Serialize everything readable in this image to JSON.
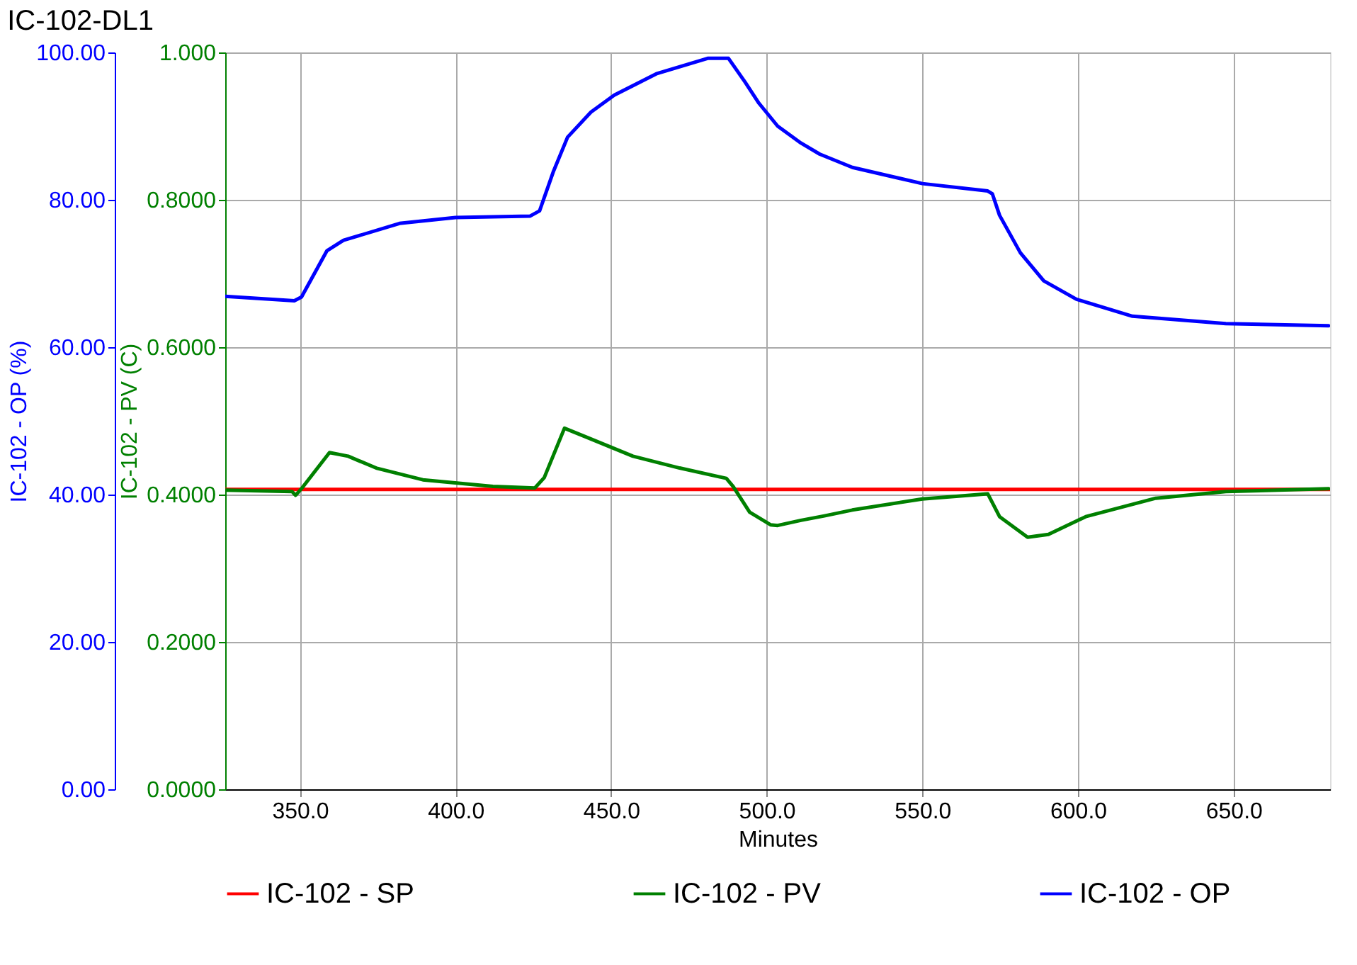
{
  "chart_data": {
    "type": "line",
    "title": "IC-102-DL1",
    "xlabel": "Minutes",
    "ylabel": "IC-102 - PV (C)",
    "y2label": "IC-102 - OP (%)",
    "xlim": [
      326,
      681
    ],
    "xticks": [
      {
        "value": 350,
        "label": "350.0"
      },
      {
        "value": 400,
        "label": "400.0"
      },
      {
        "value": 450,
        "label": "450.0"
      },
      {
        "value": 500,
        "label": "500.0"
      },
      {
        "value": 550,
        "label": "550.0"
      },
      {
        "value": 600,
        "label": "600.0"
      },
      {
        "value": 650,
        "label": "650.0"
      }
    ],
    "ylim": [
      0,
      1
    ],
    "yticks": [
      {
        "value": 0,
        "label": "0.0000"
      },
      {
        "value": 0.2,
        "label": "0.2000"
      },
      {
        "value": 0.4,
        "label": "0.4000"
      },
      {
        "value": 0.6,
        "label": "0.6000"
      },
      {
        "value": 0.8,
        "label": "0.8000"
      },
      {
        "value": 1,
        "label": "1.000"
      }
    ],
    "y2lim": [
      0,
      100
    ],
    "y2ticks": [
      {
        "value": 0,
        "label": "0.00"
      },
      {
        "value": 20,
        "label": "20.00"
      },
      {
        "value": 40,
        "label": "40.00"
      },
      {
        "value": 60,
        "label": "60.00"
      },
      {
        "value": 80,
        "label": "80.00"
      },
      {
        "value": 100,
        "label": "100.00"
      }
    ],
    "grid": true,
    "legend": "bottom",
    "line_style": "solid",
    "marker": "none",
    "series": [
      {
        "name": "IC-102 - SP",
        "color": "#ff0000",
        "axis": "y",
        "x": [
          326,
          681
        ],
        "values": [
          0.407,
          0.407
        ]
      },
      {
        "name": "IC-102 - PV",
        "color": "#008000",
        "axis": "y",
        "x": [
          326,
          347.5,
          348.6,
          350.5,
          359.5,
          365.5,
          374.5,
          389.5,
          412,
          425.5,
          428.5,
          435,
          442,
          457,
          472,
          487,
          489.2,
          494.5,
          501.2,
          503.5,
          511,
          518.5,
          527.5,
          550,
          571,
          574.8,
          583.8,
          590.5,
          602.5,
          625,
          647.5,
          680.5
        ],
        "values": [
          0.406,
          0.404,
          0.399,
          0.408,
          0.457,
          0.452,
          0.436,
          0.42,
          0.411,
          0.409,
          0.423,
          0.49,
          0.478,
          0.452,
          0.436,
          0.422,
          0.411,
          0.376,
          0.359,
          0.358,
          0.365,
          0.371,
          0.379,
          0.394,
          0.401,
          0.37,
          0.342,
          0.346,
          0.37,
          0.395,
          0.404,
          0.408
        ]
      },
      {
        "name": "IC-102 - OP",
        "color": "#0000ff",
        "axis": "y2",
        "x": [
          326,
          348.2,
          350.5,
          358.7,
          364,
          382,
          400,
          424,
          427,
          431.5,
          436,
          443.5,
          451,
          464.5,
          481,
          487.7,
          493,
          497.5,
          503.5,
          511,
          517,
          527.5,
          550,
          571,
          572.5,
          574.8,
          581.5,
          589,
          599.5,
          617.5,
          647.5,
          680.5
        ],
        "values": [
          66.9,
          66.3,
          66.8,
          73.1,
          74.5,
          76.8,
          77.6,
          77.8,
          78.5,
          83.9,
          88.5,
          91.9,
          94.2,
          97.1,
          99.2,
          99.2,
          96,
          93.1,
          90,
          87.7,
          86.2,
          84.4,
          82.2,
          81.2,
          80.8,
          77.9,
          72.8,
          69,
          66.5,
          64.2,
          63.2,
          62.9
        ]
      }
    ]
  }
}
